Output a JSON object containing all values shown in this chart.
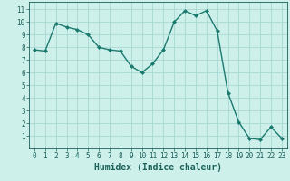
{
  "x": [
    0,
    1,
    2,
    3,
    4,
    5,
    6,
    7,
    8,
    9,
    10,
    11,
    12,
    13,
    14,
    15,
    16,
    17,
    18,
    19,
    20,
    21,
    22,
    23
  ],
  "y": [
    7.8,
    7.7,
    9.9,
    9.6,
    9.4,
    9.0,
    8.0,
    7.8,
    7.7,
    6.5,
    6.0,
    6.7,
    7.8,
    10.0,
    10.9,
    10.5,
    10.9,
    9.3,
    4.4,
    2.1,
    0.8,
    0.7,
    1.7,
    0.8
  ],
  "line_color": "#1a7a6e",
  "marker": "D",
  "marker_size": 2.0,
  "bg_color": "#cef0eb",
  "grid_color": "#a8d8d2",
  "xlabel": "Humidex (Indice chaleur)",
  "xlabel_fontsize": 7.0,
  "xlabel_color": "#1a5f58",
  "tick_color": "#1a5f58",
  "tick_fontsize": 5.5,
  "xlim": [
    -0.5,
    23.5
  ],
  "ylim": [
    0.0,
    11.6
  ],
  "yticks": [
    1,
    2,
    3,
    4,
    5,
    6,
    7,
    8,
    9,
    10,
    11
  ],
  "xticks": [
    0,
    1,
    2,
    3,
    4,
    5,
    6,
    7,
    8,
    9,
    10,
    11,
    12,
    13,
    14,
    15,
    16,
    17,
    18,
    19,
    20,
    21,
    22,
    23
  ]
}
